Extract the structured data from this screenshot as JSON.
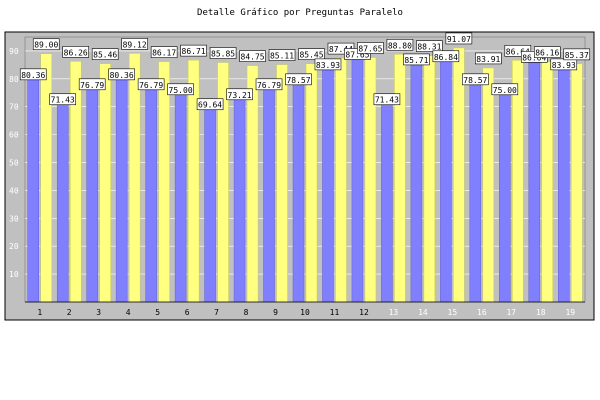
{
  "chart_data": {
    "type": "bar",
    "title": "Detalle Gráfico por Preguntas Paralelo",
    "xlabel": "",
    "ylabel": "",
    "ylim": [
      0,
      95
    ],
    "yticks": [
      10,
      20,
      30,
      40,
      50,
      60,
      70,
      80,
      90
    ],
    "grid": true,
    "categories": [
      "1",
      "2",
      "3",
      "4",
      "5",
      "6",
      "7",
      "8",
      "9",
      "10",
      "11",
      "12",
      "13",
      "14",
      "15",
      "16",
      "17",
      "18",
      "19"
    ],
    "series": [
      {
        "values": [
          80.36,
          71.43,
          76.79,
          80.36,
          76.79,
          75.0,
          69.64,
          73.21,
          76.79,
          78.57,
          83.93,
          87.65,
          71.43,
          85.71,
          86.84,
          78.57,
          75.0,
          86.64,
          83.93
        ]
      },
      {
        "values": [
          89.0,
          86.26,
          85.46,
          89.12,
          86.17,
          86.71,
          85.85,
          84.75,
          85.11,
          85.45,
          87.44,
          87.65,
          88.8,
          88.31,
          91.07,
          83.91,
          86.64,
          86.16,
          85.37
        ]
      }
    ],
    "colors": {
      "series1": "#8080ff",
      "series2": "#ffff80",
      "plot_background": "#c0c0c0",
      "light_tick_labels": "#ffffff",
      "dark_tick_labels": "#000000"
    }
  }
}
